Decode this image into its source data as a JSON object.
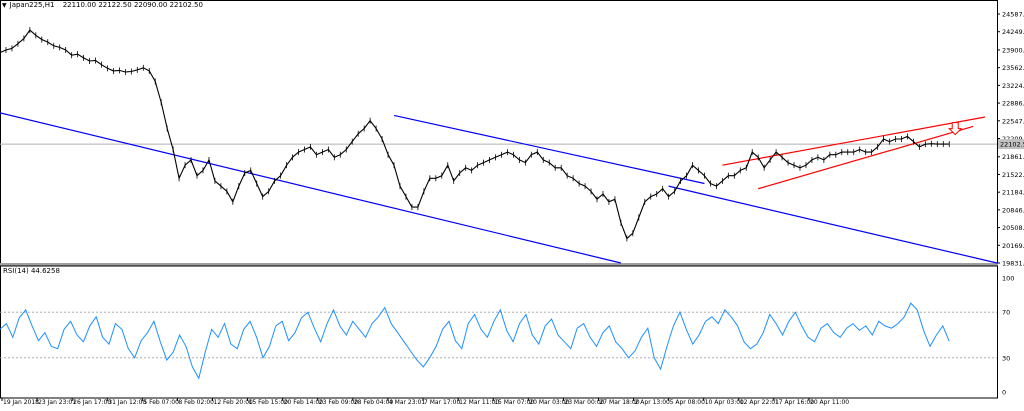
{
  "header": {
    "symbol": "Japan225,H1",
    "ohlc": "22110.00 22122.50 22090.00 22102.50"
  },
  "rsi_header": "RSI(14) 44.6258",
  "chart_data": [
    {
      "type": "line",
      "panel": "price",
      "ylim": [
        19831.65,
        24587.65
      ],
      "y_ticks": [
        "24587.65",
        "24249.40",
        "23900.90",
        "23562.65",
        "23224.40",
        "22886.15",
        "22547.90",
        "22209.65",
        "21861.15",
        "21522.90",
        "21184.65",
        "20846.40",
        "20508.15",
        "20169.90",
        "19831.65"
      ],
      "current_price": "22102.50",
      "x_ticks": [
        "19 Jan 2018",
        "23 Jan 23:01",
        "26 Jan 17:00",
        "31 Jan 12:00",
        "5 Feb 07:00",
        "8 Feb 02:00",
        "12 Feb 20:00",
        "15 Feb 15:00",
        "20 Feb 14:00",
        "23 Feb 09:00",
        "28 Feb 04:00",
        "4 Mar 23:01",
        "7 Mar 17:00",
        "12 Mar 11:00",
        "15 Mar 07:00",
        "20 Mar 03:00",
        "23 Mar 00:00",
        "27 Mar 18:00",
        "2 Apr 13:00",
        "5 Apr 08:00",
        "10 Apr 03:00",
        "12 Apr 22:01",
        "17 Apr 16:00",
        "20 Apr 11:00"
      ],
      "series": [
        {
          "x": [
            0,
            5,
            10,
            15,
            20,
            25,
            30,
            35,
            40,
            45,
            50,
            55,
            60,
            65,
            70,
            75,
            80,
            85,
            90,
            95,
            100,
            105,
            110,
            115,
            120,
            125,
            130,
            135,
            140,
            145,
            150,
            155,
            160,
            165,
            170,
            175,
            180,
            185,
            190,
            195,
            200,
            205,
            210,
            215,
            220,
            225,
            230,
            235,
            240,
            245,
            250,
            255,
            260,
            265,
            270,
            275,
            280,
            285,
            290,
            295,
            300,
            305,
            310,
            315,
            320,
            325,
            330,
            335,
            340,
            345,
            350,
            355,
            360,
            365,
            370,
            375,
            380,
            385,
            390,
            395,
            400,
            405,
            410,
            415,
            420,
            425,
            430,
            435,
            440,
            445,
            450,
            455,
            460,
            465,
            470,
            475,
            480,
            485,
            490,
            495,
            500,
            505,
            510,
            515,
            520,
            525,
            530,
            535,
            540,
            545,
            550,
            555,
            560,
            565,
            570,
            575,
            580,
            585,
            590,
            595,
            600,
            605,
            610,
            615,
            620,
            625,
            630,
            635,
            640,
            645,
            650,
            655,
            660,
            665,
            670,
            675,
            680,
            685,
            690,
            695,
            700,
            705,
            710,
            715,
            720,
            725,
            730,
            735,
            740,
            745,
            750,
            755,
            760,
            765,
            770,
            775,
            780,
            785,
            790,
            795
          ],
          "values": [
            23850,
            23900,
            23930,
            24020,
            24120,
            24280,
            24180,
            24100,
            24050,
            23980,
            23950,
            23900,
            23800,
            23820,
            23750,
            23690,
            23700,
            23620,
            23550,
            23500,
            23510,
            23480,
            23490,
            23520,
            23560,
            23500,
            23300,
            22900,
            22400,
            22000,
            21450,
            21700,
            21800,
            21500,
            21600,
            21800,
            21400,
            21300,
            21200,
            21000,
            21300,
            21550,
            21600,
            21350,
            21100,
            21200,
            21400,
            21500,
            21700,
            21850,
            21950,
            22000,
            22050,
            21900,
            21950,
            22000,
            21850,
            21900,
            22000,
            22150,
            22300,
            22400,
            22550,
            22400,
            22200,
            21900,
            21700,
            21300,
            21100,
            20900,
            20900,
            21200,
            21450,
            21450,
            21500,
            21700,
            21400,
            21550,
            21650,
            21600,
            21700,
            21750,
            21800,
            21850,
            21900,
            21950,
            21900,
            21800,
            21750,
            21900,
            21950,
            21800,
            21750,
            21650,
            21650,
            21500,
            21450,
            21350,
            21300,
            21200,
            21050,
            21150,
            21000,
            21050,
            20600,
            20300,
            20400,
            20700,
            21000,
            21100,
            21150,
            21250,
            21100,
            21200,
            21400,
            21500,
            21700,
            21600,
            21500,
            21350,
            21300,
            21400,
            21500,
            21500,
            21600,
            21650,
            21950,
            21850,
            21650,
            21800,
            21950,
            21850,
            21750,
            21700,
            21650,
            21700,
            21800,
            21850,
            21800,
            21900,
            21900,
            21950,
            21950,
            21950,
            22000,
            21950,
            21950,
            22050,
            22200,
            22150,
            22200,
            22200,
            22250,
            22150,
            22050,
            22100,
            22110,
            22102.5,
            22102.5,
            22102.5
          ]
        }
      ],
      "overlays": [
        {
          "name": "blue-trendline",
          "color": "#0000ff",
          "from": [
            0,
            22700
          ],
          "to": [
            520,
            19831.65
          ]
        },
        {
          "name": "blue-channel-upper",
          "color": "#0000ff",
          "from": [
            330,
            22650
          ],
          "to": [
            590,
            21350
          ]
        },
        {
          "name": "blue-channel-lower",
          "color": "#0000ff",
          "from": [
            560,
            21300
          ],
          "to": [
            835,
            19831.65
          ]
        },
        {
          "name": "red-wedge-upper",
          "color": "#ff0000",
          "from": [
            605,
            21700
          ],
          "to": [
            825,
            22620
          ]
        },
        {
          "name": "red-wedge-lower",
          "color": "#ff0000",
          "from": [
            635,
            21250
          ],
          "to": [
            815,
            22440
          ]
        }
      ],
      "marker": {
        "name": "sell-arrow",
        "color": "#ff0000",
        "x": 800,
        "y": 22380
      }
    },
    {
      "type": "line",
      "panel": "rsi",
      "ylim": [
        0,
        100
      ],
      "y_ticks": [
        "100",
        "70",
        "30",
        "0"
      ],
      "levels": [
        70,
        30
      ],
      "series": [
        {
          "name": "RSI(14)",
          "values": [
            55,
            60,
            48,
            65,
            72,
            58,
            45,
            52,
            40,
            38,
            55,
            62,
            50,
            44,
            58,
            66,
            48,
            42,
            60,
            55,
            38,
            30,
            45,
            52,
            62,
            44,
            28,
            35,
            50,
            40,
            22,
            12,
            35,
            55,
            48,
            60,
            42,
            38,
            55,
            62,
            48,
            30,
            40,
            58,
            62,
            45,
            52,
            65,
            70,
            56,
            44,
            60,
            72,
            58,
            50,
            62,
            55,
            48,
            60,
            66,
            74,
            60,
            52,
            44,
            36,
            28,
            22,
            30,
            40,
            55,
            62,
            45,
            38,
            60,
            68,
            55,
            48,
            62,
            72,
            54,
            44,
            60,
            68,
            50,
            42,
            58,
            64,
            50,
            44,
            38,
            56,
            60,
            48,
            40,
            52,
            58,
            44,
            38,
            30,
            36,
            48,
            56,
            30,
            20,
            40,
            58,
            70,
            55,
            42,
            50,
            62,
            66,
            60,
            72,
            66,
            58,
            44,
            38,
            42,
            52,
            68,
            60,
            50,
            62,
            70,
            58,
            48,
            44,
            56,
            60,
            52,
            48,
            56,
            60,
            54,
            58,
            50,
            62,
            58,
            56,
            60,
            66,
            78,
            72,
            54,
            40,
            50,
            58,
            44.6
          ]
        }
      ]
    }
  ]
}
